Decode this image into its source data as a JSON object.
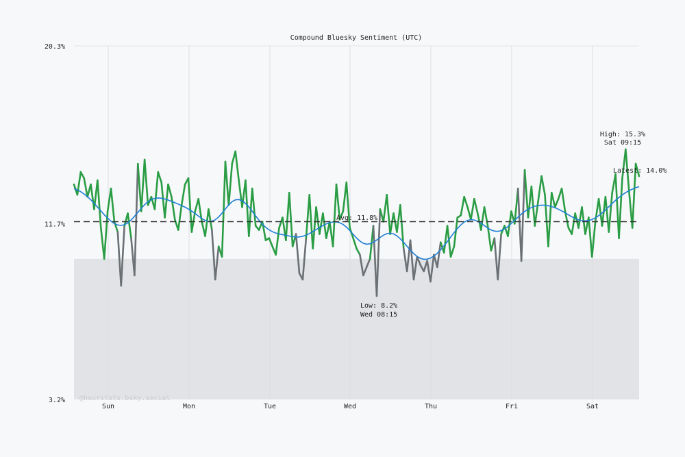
{
  "chart_data": {
    "type": "line",
    "title": "Compound Bluesky Sentiment (UTC)",
    "ylim": [
      3.2,
      20.3
    ],
    "y_ticks": [
      "20.3%",
      "11.7%",
      "3.2%"
    ],
    "y_tick_values": [
      20.3,
      11.7,
      3.2
    ],
    "x_ticks": [
      "Sun",
      "Mon",
      "Tue",
      "Wed",
      "Thu",
      "Fri",
      "Sat"
    ],
    "grid": "vertical",
    "shaded_below": 10.0,
    "series": [
      {
        "values": [
          13.6,
          13.1,
          14.2,
          13.9,
          13.0,
          13.6,
          12.4,
          13.8,
          11.5,
          10.0,
          12.3,
          13.4,
          11.8,
          11.3,
          8.7,
          11.6,
          12.2,
          11.0,
          9.2,
          14.6,
          12.3,
          14.8,
          12.6,
          13.0,
          12.4,
          14.2,
          13.7,
          12.0,
          13.6,
          13.0,
          11.9,
          11.4,
          12.6,
          13.6,
          13.9,
          11.3,
          12.3,
          12.9,
          11.8,
          11.1,
          12.4,
          11.4,
          9.0,
          10.6,
          10.1,
          14.7,
          12.6,
          14.6,
          15.2,
          13.8,
          12.5,
          13.8,
          11.1,
          13.4,
          11.6,
          11.4,
          11.8,
          10.9,
          11.0,
          10.6,
          10.2,
          11.5,
          12.0,
          10.9,
          13.2,
          10.6,
          11.2,
          9.3,
          9.0,
          11.0,
          13.1,
          10.5,
          12.5,
          11.2,
          12.2,
          11.0,
          11.8,
          10.6,
          13.6,
          11.9,
          12.3,
          13.7,
          11.5,
          11.0,
          10.5,
          10.2,
          9.2,
          9.6,
          10.0,
          11.6,
          8.2,
          12.4,
          11.8,
          13.1,
          11.2,
          12.2,
          11.3,
          12.6,
          10.5,
          9.4,
          10.9,
          9.0,
          10.1,
          9.7,
          9.4,
          9.9,
          8.9,
          10.2,
          9.6,
          10.8,
          10.3,
          11.6,
          10.1,
          10.6,
          12.0,
          12.1,
          13.0,
          12.5,
          11.9,
          12.9,
          12.2,
          11.4,
          12.5,
          11.6,
          10.4,
          11.0,
          9.0,
          11.2,
          11.6,
          11.1,
          12.3,
          11.7,
          13.4,
          9.9,
          14.3,
          12.0,
          13.5,
          11.6,
          12.8,
          14.0,
          13.1,
          10.6,
          13.2,
          12.5,
          12.9,
          13.4,
          12.3,
          11.5,
          11.2,
          12.2,
          11.5,
          12.5,
          11.2,
          12.0,
          10.1,
          11.8,
          12.9,
          11.6,
          13.0,
          11.3,
          13.2,
          14.1,
          11.0,
          13.9,
          15.3,
          13.3,
          11.5,
          14.6,
          14.0
        ]
      }
    ],
    "average": 11.8,
    "annotations": {
      "avg": "Avg: 11.8%",
      "low_value": "Low: 8.2%",
      "low_time": "Wed 08:15",
      "high_value": "High: 15.3%",
      "high_time": "Sat 09:15",
      "latest": "Latest: 14.0%"
    },
    "watermark": "@hourstats.bsky.social",
    "colors": {
      "line_above": "#2a9d44",
      "line_below": "#6b7075",
      "moving_average": "#1e7ed6",
      "average_line": "#333333",
      "band": "#e1e3e6",
      "background": "#f6f8fa"
    }
  }
}
